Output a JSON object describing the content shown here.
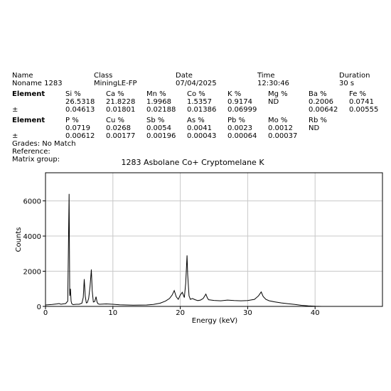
{
  "header": {
    "columns": [
      {
        "label": "Name",
        "value": "Noname 1283"
      },
      {
        "label": "Class",
        "value": "MiningLE-FP"
      },
      {
        "label": "Date",
        "value": "07/04/2025"
      },
      {
        "label": "Time",
        "value": "12:30:46"
      },
      {
        "label": "Duration",
        "value": "30 s"
      }
    ]
  },
  "results": {
    "block1": {
      "label": "Element",
      "pm_label": "±",
      "items": [
        {
          "name": "Si %",
          "value": "26.5318",
          "err": "0.04613"
        },
        {
          "name": "Ca %",
          "value": "21.8228",
          "err": "0.01801"
        },
        {
          "name": "Mn %",
          "value": "1.9968",
          "err": "0.02188"
        },
        {
          "name": "Co %",
          "value": "1.5357",
          "err": "0.01386"
        },
        {
          "name": "K %",
          "value": "0.9174",
          "err": "0.06999"
        },
        {
          "name": "Mg %",
          "value": "ND",
          "err": ""
        },
        {
          "name": "Ba %",
          "value": "0.2006",
          "err": "0.00642"
        },
        {
          "name": "Fe %",
          "value": "0.0741",
          "err": "0.00555"
        }
      ]
    },
    "block2": {
      "label": "Element",
      "pm_label": "±",
      "items": [
        {
          "name": "P %",
          "value": "0.0719",
          "err": "0.00612"
        },
        {
          "name": "Cu %",
          "value": "0.0268",
          "err": "0.00177"
        },
        {
          "name": "Sb %",
          "value": "0.0054",
          "err": "0.00196"
        },
        {
          "name": "As %",
          "value": "0.0041",
          "err": "0.00043"
        },
        {
          "name": "Pb %",
          "value": "0.0023",
          "err": "0.00064"
        },
        {
          "name": "Mo %",
          "value": "0.0012",
          "err": "0.00037"
        },
        {
          "name": "Rb %",
          "value": "ND",
          "err": ""
        }
      ]
    }
  },
  "info": {
    "grades": "Grades: No Match",
    "reference": "Reference:",
    "matrix": "Matrix group:"
  },
  "chart_data": {
    "type": "line",
    "title": "1283 Asbolane Co+ Cryptomelane K",
    "xlabel": "Energy (keV)",
    "ylabel": "Counts",
    "xlim": [
      0,
      50
    ],
    "ylim": [
      0,
      7600
    ],
    "xticks": [
      0,
      10,
      20,
      30,
      40
    ],
    "yticks": [
      0,
      2000,
      4000,
      6000
    ],
    "grid": true,
    "line_color": "#000000",
    "series": [
      {
        "x": [
          0,
          1,
          1.7,
          2.0,
          2.3,
          2.6,
          3.0,
          3.3,
          3.5,
          3.6,
          3.7,
          3.8,
          3.9,
          4.0,
          4.1,
          4.3,
          4.6,
          5.0,
          5.4,
          5.6,
          5.75,
          5.9,
          6.05,
          6.2,
          6.4,
          6.6,
          6.8,
          6.93,
          7.1,
          7.3,
          7.5,
          7.65,
          7.8,
          8.0,
          8.5,
          9.0,
          9.5,
          10,
          11,
          12,
          13,
          14,
          15,
          16,
          17,
          17.8,
          18.4,
          18.8,
          19.1,
          19.4,
          19.7,
          20.0,
          20.3,
          20.6,
          20.8,
          21.0,
          21.1,
          21.3,
          21.5,
          21.8,
          22.2,
          22.6,
          23.0,
          23.4,
          23.8,
          24.0,
          24.2,
          24.6,
          25,
          26,
          27,
          28,
          29,
          30,
          31,
          31.6,
          32.0,
          32.3,
          32.7,
          33.2,
          34,
          35,
          36,
          37,
          38,
          39,
          40,
          41,
          42,
          43,
          44,
          45,
          46,
          47,
          48,
          49.5
        ],
        "values": [
          80,
          110,
          140,
          160,
          120,
          140,
          160,
          300,
          6400,
          600,
          1000,
          300,
          150,
          120,
          100,
          110,
          120,
          120,
          180,
          500,
          1550,
          600,
          200,
          220,
          450,
          1100,
          2100,
          900,
          250,
          280,
          550,
          250,
          150,
          120,
          130,
          140,
          130,
          120,
          90,
          80,
          70,
          75,
          80,
          110,
          180,
          300,
          450,
          650,
          900,
          550,
          400,
          650,
          800,
          500,
          1300,
          2900,
          1800,
          600,
          400,
          450,
          380,
          330,
          360,
          450,
          700,
          500,
          380,
          360,
          340,
          320,
          360,
          330,
          320,
          330,
          400,
          600,
          820,
          560,
          400,
          320,
          260,
          200,
          150,
          110,
          60,
          30,
          10,
          0,
          0,
          0,
          0,
          0,
          0,
          0,
          0,
          0
        ]
      }
    ]
  }
}
